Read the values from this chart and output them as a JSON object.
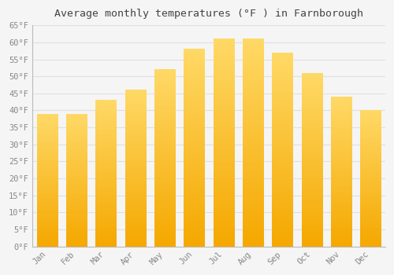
{
  "title": "Average monthly temperatures (°F ) in Farnborough",
  "months": [
    "Jan",
    "Feb",
    "Mar",
    "Apr",
    "May",
    "Jun",
    "Jul",
    "Aug",
    "Sep",
    "Oct",
    "Nov",
    "Dec"
  ],
  "values": [
    39,
    39,
    43,
    46,
    52,
    58,
    61,
    61,
    57,
    51,
    44,
    40
  ],
  "bar_color_bottom": "#F5A800",
  "bar_color_top": "#FFD966",
  "background_color": "#F5F5F5",
  "plot_bg_color": "#F5F5F5",
  "grid_color": "#E0E0E0",
  "tick_label_color": "#888888",
  "title_color": "#444444",
  "ylim": [
    0,
    65
  ],
  "yticks": [
    0,
    5,
    10,
    15,
    20,
    25,
    30,
    35,
    40,
    45,
    50,
    55,
    60,
    65
  ],
  "ylabel_suffix": "°F",
  "figsize": [
    5.0,
    3.5
  ],
  "dpi": 100,
  "bar_width": 0.7
}
